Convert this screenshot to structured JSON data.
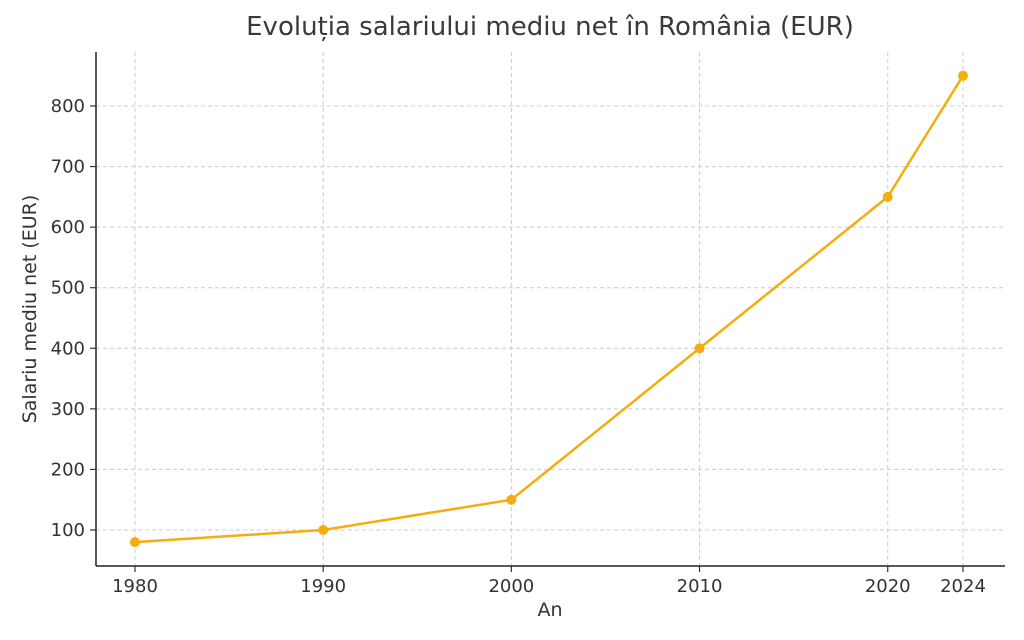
{
  "chart_data": {
    "type": "line",
    "title": "Evoluția salariului mediu net în România (EUR)",
    "xlabel": "An",
    "ylabel": "Salariu mediu net (EUR)",
    "x": [
      1980,
      1990,
      2000,
      2010,
      2020,
      2024
    ],
    "x_tick_labels": [
      "1980",
      "1990",
      "2000",
      "2010",
      "2020",
      "2024"
    ],
    "y_ticks": [
      100,
      200,
      300,
      400,
      500,
      600,
      700,
      800
    ],
    "ylim": [
      40,
      890
    ],
    "grid": true,
    "series": [
      {
        "values": [
          80,
          100,
          150,
          400,
          650,
          850
        ],
        "color": "#F5AD0D"
      }
    ]
  }
}
